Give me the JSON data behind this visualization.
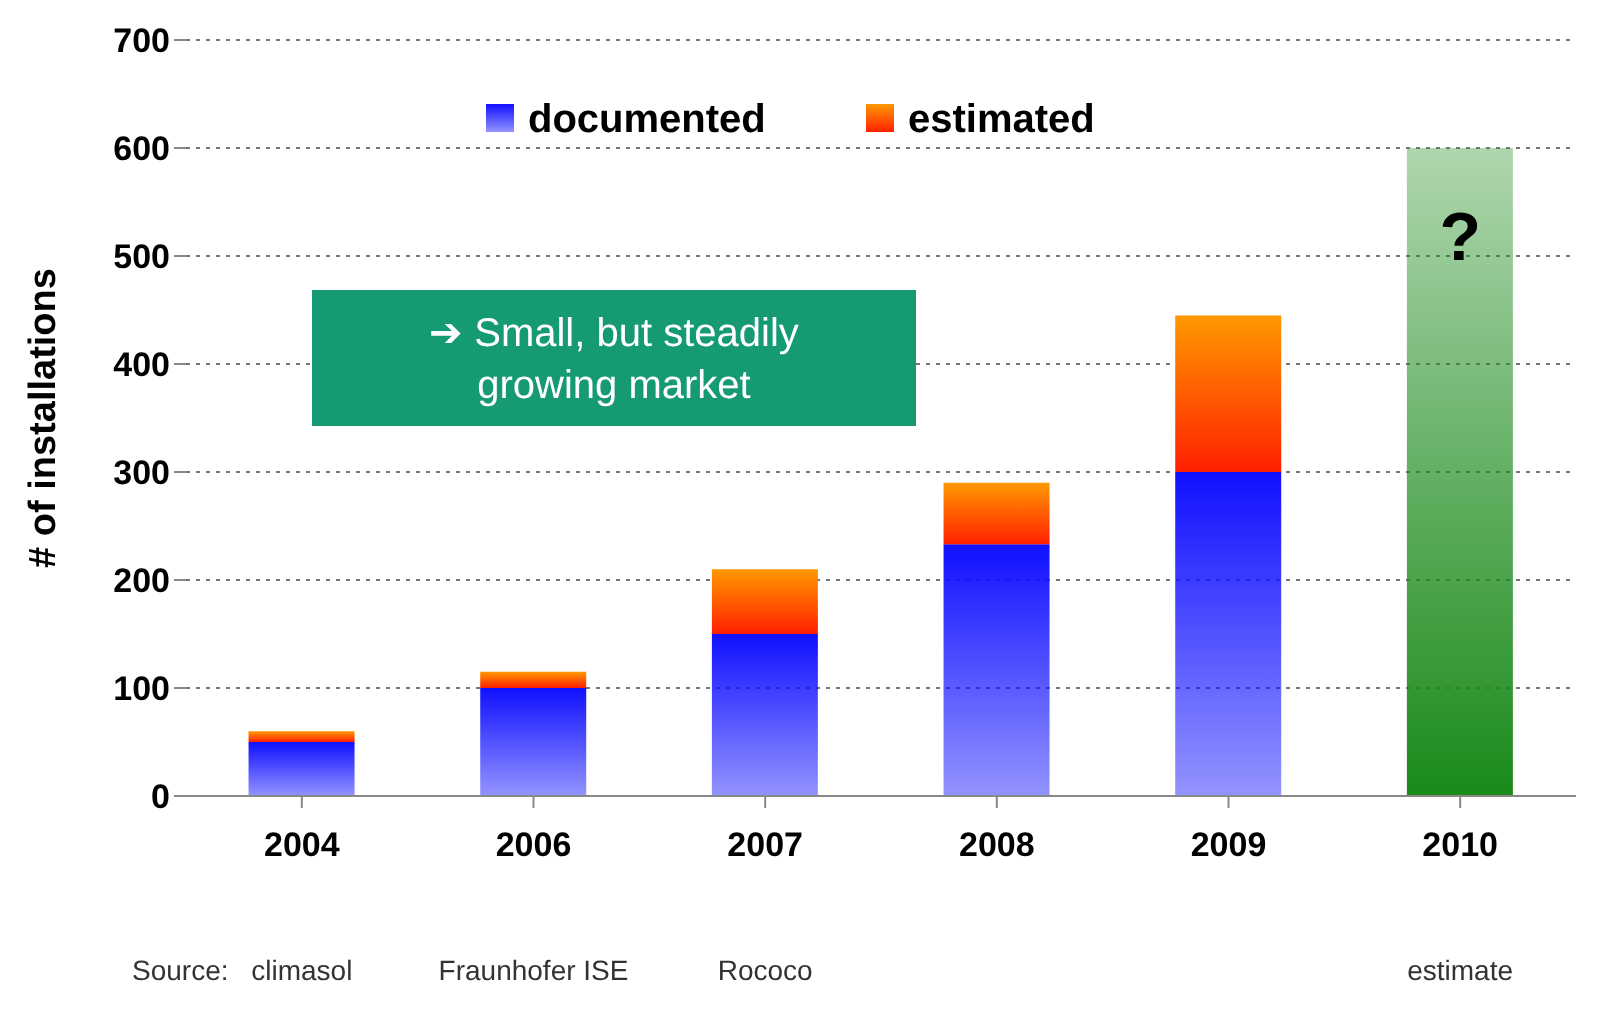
{
  "chart_data": {
    "type": "bar",
    "ylabel": "# of installations",
    "categories": [
      "2004",
      "2006",
      "2007",
      "2008",
      "2009",
      "2010"
    ],
    "stacked": true,
    "series": [
      {
        "name": "documented",
        "color": "#1010ff",
        "values": [
          50,
          100,
          150,
          233,
          300,
          null
        ]
      },
      {
        "name": "estimated",
        "color": "#ff9900",
        "values": [
          10,
          15,
          60,
          57,
          145,
          null
        ]
      },
      {
        "color": "#1a8a1a",
        "values": [
          null,
          null,
          null,
          null,
          null,
          600
        ]
      }
    ],
    "ylim": [
      0,
      700
    ],
    "yticks": [
      0,
      100,
      200,
      300,
      400,
      500,
      600,
      700
    ],
    "grid": "y",
    "legend": "top",
    "annotations": [
      "➔ Small, but steadily growing market",
      "Source:",
      "climasol",
      "Fraunhofer ISE",
      "Rococo",
      "estimate",
      "?"
    ]
  }
}
